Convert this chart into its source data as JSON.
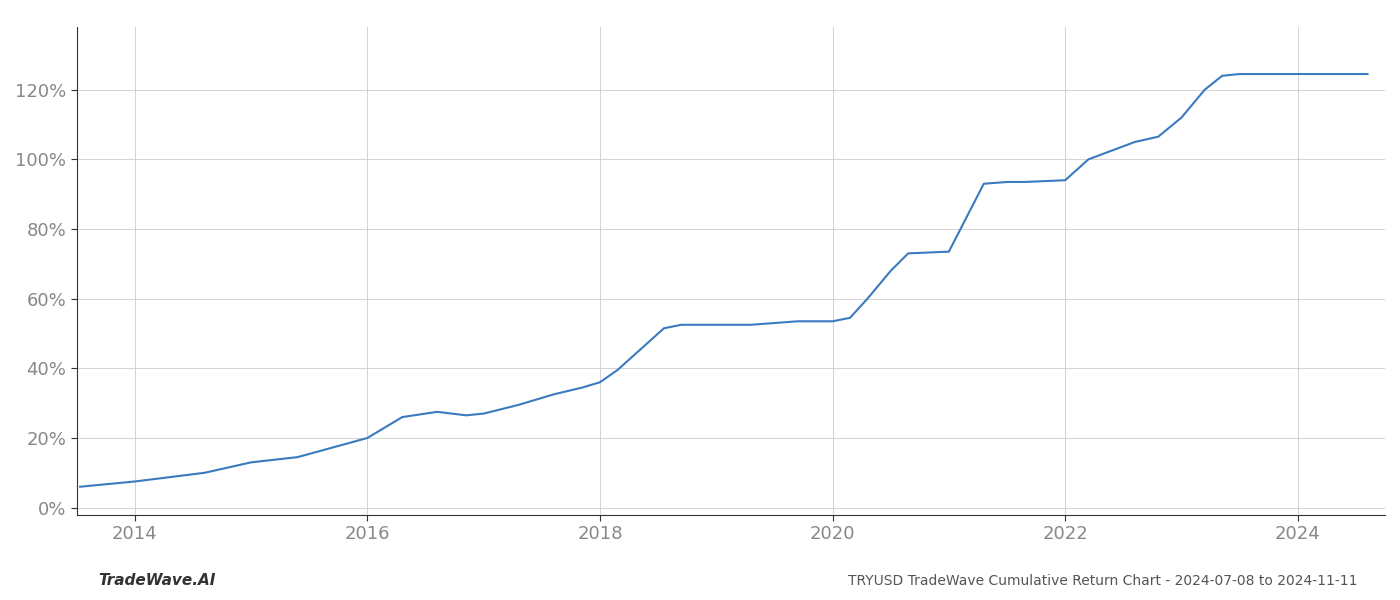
{
  "footer_left": "TradeWave.AI",
  "footer_right": "TRYUSD TradeWave Cumulative Return Chart - 2024-07-08 to 2024-11-11",
  "line_color": "#3a7abf",
  "line_width": 1.5,
  "background_color": "#ffffff",
  "grid_color": "#cccccc",
  "x_years": [
    2014,
    2016,
    2018,
    2020,
    2022,
    2024
  ],
  "xlim": [
    2013.5,
    2024.75
  ],
  "ylim": [
    -0.02,
    1.38
  ],
  "yticks": [
    0.0,
    0.2,
    0.4,
    0.6,
    0.8,
    1.0,
    1.2
  ],
  "data_points": [
    [
      2013.53,
      0.06
    ],
    [
      2014.0,
      0.075
    ],
    [
      2014.6,
      0.1
    ],
    [
      2015.0,
      0.13
    ],
    [
      2015.4,
      0.145
    ],
    [
      2016.0,
      0.2
    ],
    [
      2016.3,
      0.26
    ],
    [
      2016.6,
      0.275
    ],
    [
      2016.85,
      0.265
    ],
    [
      2017.0,
      0.27
    ],
    [
      2017.3,
      0.295
    ],
    [
      2017.6,
      0.325
    ],
    [
      2017.85,
      0.345
    ],
    [
      2018.0,
      0.36
    ],
    [
      2018.15,
      0.395
    ],
    [
      2018.35,
      0.455
    ],
    [
      2018.55,
      0.515
    ],
    [
      2018.7,
      0.525
    ],
    [
      2019.0,
      0.525
    ],
    [
      2019.3,
      0.525
    ],
    [
      2019.5,
      0.53
    ],
    [
      2019.7,
      0.535
    ],
    [
      2019.85,
      0.535
    ],
    [
      2020.0,
      0.535
    ],
    [
      2020.15,
      0.545
    ],
    [
      2020.3,
      0.6
    ],
    [
      2020.5,
      0.68
    ],
    [
      2020.65,
      0.73
    ],
    [
      2021.0,
      0.735
    ],
    [
      2021.3,
      0.93
    ],
    [
      2021.5,
      0.935
    ],
    [
      2021.65,
      0.935
    ],
    [
      2022.0,
      0.94
    ],
    [
      2022.2,
      1.0
    ],
    [
      2022.4,
      1.025
    ],
    [
      2022.6,
      1.05
    ],
    [
      2022.8,
      1.065
    ],
    [
      2023.0,
      1.12
    ],
    [
      2023.2,
      1.2
    ],
    [
      2023.35,
      1.24
    ],
    [
      2023.5,
      1.245
    ],
    [
      2024.0,
      1.245
    ],
    [
      2024.6,
      1.245
    ]
  ]
}
